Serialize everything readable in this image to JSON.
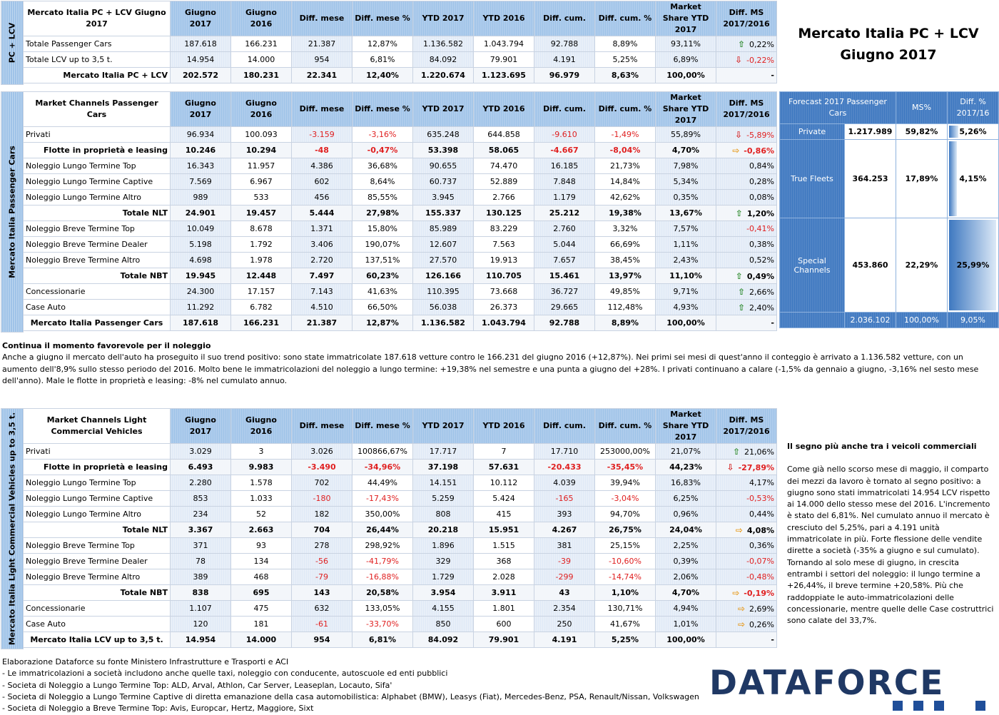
{
  "header": {
    "title_line1": "Mercato Italia PC + LCV",
    "title_line2": "Giugno 2017"
  },
  "columns": [
    "Giugno 2017",
    "Giugno 2016",
    "Diff. mese",
    "Diff. mese %",
    "YTD 2017",
    "YTD 2016",
    "Diff. cum.",
    "Diff. cum. %",
    "Market Share YTD 2017",
    "Diff. MS 2017/2016"
  ],
  "table1": {
    "side_label": "PC + LCV",
    "head_label": "Mercato Italia PC + LCV Giugno 2017",
    "rows": [
      {
        "label": "Totale Passenger Cars",
        "v": [
          "187.618",
          "166.231",
          "21.387",
          "12,87%",
          "1.136.582",
          "1.043.794",
          "92.788",
          "8,89%",
          "93,11%"
        ],
        "arrow": "up",
        "dms": "0,22%",
        "neg": []
      },
      {
        "label": "Totale LCV up to 3,5 t.",
        "v": [
          "14.954",
          "14.000",
          "954",
          "6,81%",
          "84.092",
          "79.901",
          "4.191",
          "5,25%",
          "6,89%"
        ],
        "arrow": "down",
        "dms": "-0,22%",
        "neg": [
          9
        ]
      },
      {
        "label": "Mercato Italia PC + LCV",
        "v": [
          "202.572",
          "180.231",
          "22.341",
          "12,40%",
          "1.220.674",
          "1.123.695",
          "96.979",
          "8,63%",
          "100,00%"
        ],
        "arrow": "",
        "dms": "-",
        "neg": [],
        "bold": true
      }
    ]
  },
  "table2": {
    "side_label": "Mercato Italia Passenger Cars",
    "head_label": "Market Channels Passenger Cars",
    "rows": [
      {
        "label": "Privati",
        "v": [
          "96.934",
          "100.093",
          "-3.159",
          "-3,16%",
          "635.248",
          "644.858",
          "-9.610",
          "-1,49%",
          "55,89%"
        ],
        "arrow": "down",
        "dms": "-5,89%",
        "neg": [
          2,
          3,
          6,
          7,
          9
        ]
      },
      {
        "label": "Flotte in proprietà e leasing",
        "v": [
          "10.246",
          "10.294",
          "-48",
          "-0,47%",
          "53.398",
          "58.065",
          "-4.667",
          "-8,04%",
          "4,70%"
        ],
        "arrow": "right",
        "dms": "-0,86%",
        "neg": [
          2,
          3,
          6,
          7,
          9
        ],
        "bold": true
      },
      {
        "label": "Noleggio Lungo Termine Top",
        "v": [
          "16.343",
          "11.957",
          "4.386",
          "36,68%",
          "90.655",
          "74.470",
          "16.185",
          "21,73%",
          "7,98%"
        ],
        "arrow": "",
        "dms": "0,84%",
        "neg": []
      },
      {
        "label": "Noleggio Lungo Termine Captive",
        "v": [
          "7.569",
          "6.967",
          "602",
          "8,64%",
          "60.737",
          "52.889",
          "7.848",
          "14,84%",
          "5,34%"
        ],
        "arrow": "",
        "dms": "0,28%",
        "neg": []
      },
      {
        "label": "Noleggio Lungo Termine Altro",
        "v": [
          "989",
          "533",
          "456",
          "85,55%",
          "3.945",
          "2.766",
          "1.179",
          "42,62%",
          "0,35%"
        ],
        "arrow": "",
        "dms": "0,08%",
        "neg": []
      },
      {
        "label": "Totale NLT",
        "v": [
          "24.901",
          "19.457",
          "5.444",
          "27,98%",
          "155.337",
          "130.125",
          "25.212",
          "19,38%",
          "13,67%"
        ],
        "arrow": "up",
        "dms": "1,20%",
        "neg": [],
        "bold": true
      },
      {
        "label": "Noleggio Breve Termine Top",
        "v": [
          "10.049",
          "8.678",
          "1.371",
          "15,80%",
          "85.989",
          "83.229",
          "2.760",
          "3,32%",
          "7,57%"
        ],
        "arrow": "",
        "dms": "-0,41%",
        "neg": [
          9
        ]
      },
      {
        "label": "Noleggio Breve Termine Dealer",
        "v": [
          "5.198",
          "1.792",
          "3.406",
          "190,07%",
          "12.607",
          "7.563",
          "5.044",
          "66,69%",
          "1,11%"
        ],
        "arrow": "",
        "dms": "0,38%",
        "neg": []
      },
      {
        "label": "Noleggio Breve Termine Altro",
        "v": [
          "4.698",
          "1.978",
          "2.720",
          "137,51%",
          "27.570",
          "19.913",
          "7.657",
          "38,45%",
          "2,43%"
        ],
        "arrow": "",
        "dms": "0,52%",
        "neg": []
      },
      {
        "label": "Totale NBT",
        "v": [
          "19.945",
          "12.448",
          "7.497",
          "60,23%",
          "126.166",
          "110.705",
          "15.461",
          "13,97%",
          "11,10%"
        ],
        "arrow": "up",
        "dms": "0,49%",
        "neg": [],
        "bold": true
      },
      {
        "label": "Concessionarie",
        "v": [
          "24.300",
          "17.157",
          "7.143",
          "41,63%",
          "110.395",
          "73.668",
          "36.727",
          "49,85%",
          "9,71%"
        ],
        "arrow": "up",
        "dms": "2,66%",
        "neg": []
      },
      {
        "label": "Case Auto",
        "v": [
          "11.292",
          "6.782",
          "4.510",
          "66,50%",
          "56.038",
          "26.373",
          "29.665",
          "112,48%",
          "4,93%"
        ],
        "arrow": "up",
        "dms": "2,40%",
        "neg": []
      },
      {
        "label": "Mercato Italia Passenger Cars",
        "v": [
          "187.618",
          "166.231",
          "21.387",
          "12,87%",
          "1.136.582",
          "1.043.794",
          "92.788",
          "8,89%",
          "100,00%"
        ],
        "arrow": "",
        "dms": "-",
        "neg": [],
        "bold": true,
        "total": true
      }
    ]
  },
  "forecast": {
    "head": [
      "Forecast 2017 Passenger Cars",
      "MS%",
      "Diff. % 2017/16"
    ],
    "rows": [
      {
        "label": "Private",
        "value": "1.217.989",
        "ms": "59,82%",
        "diff": "5,26%",
        "bar": 0.2
      },
      {
        "label": "True Fleets",
        "value": "364.253",
        "ms": "17,89%",
        "diff": "4,15%",
        "bar": 0.16
      },
      {
        "label": "Special Channels",
        "value": "453.860",
        "ms": "22,29%",
        "diff": "25,99%",
        "bar": 1.0
      }
    ],
    "total": {
      "value": "2.036.102",
      "ms": "100,00%",
      "diff": "9,05%"
    }
  },
  "text1": {
    "title": "Continua il momento favorevole per il noleggio",
    "body": "Anche a giugno il mercato dell'auto ha proseguito il suo trend positivo: sono state immatricolate 187.618 vetture contro le 166.231 del giugno 2016 (+12,87%). Nei primi sei mesi di quest'anno il conteggio è arrivato a 1.136.582 vetture, con un aumento dell'8,9% sullo stesso periodo del 2016. Molto bene le immatricolazioni del noleggio a lungo termine:  +19,38% nel semestre e una punta a giugno del +28%. I privati continuano a calare (-1,5% da gennaio a giugno, -3,16% nel sesto mese dell'anno). Male le flotte in proprietà e leasing: -8% nel cumulato annuo."
  },
  "table3": {
    "side_label": "Mercato Italia Light Commercial Vehicles up to 3,5 t.",
    "head_label": "Market Channels Light Commercial Vehicles",
    "rows": [
      {
        "label": "Privati",
        "v": [
          "3.029",
          "3",
          "3.026",
          "100866,67%",
          "17.717",
          "7",
          "17.710",
          "253000,00%",
          "21,07%"
        ],
        "arrow": "up",
        "dms": "21,06%",
        "neg": []
      },
      {
        "label": "Flotte in proprietà e leasing",
        "v": [
          "6.493",
          "9.983",
          "-3.490",
          "-34,96%",
          "37.198",
          "57.631",
          "-20.433",
          "-35,45%",
          "44,23%"
        ],
        "arrow": "down",
        "dms": "-27,89%",
        "neg": [
          2,
          3,
          6,
          7,
          9
        ],
        "bold": true
      },
      {
        "label": "Noleggio Lungo Termine Top",
        "v": [
          "2.280",
          "1.578",
          "702",
          "44,49%",
          "14.151",
          "10.112",
          "4.039",
          "39,94%",
          "16,83%"
        ],
        "arrow": "",
        "dms": "4,17%",
        "neg": []
      },
      {
        "label": "Noleggio Lungo Termine Captive",
        "v": [
          "853",
          "1.033",
          "-180",
          "-17,43%",
          "5.259",
          "5.424",
          "-165",
          "-3,04%",
          "6,25%"
        ],
        "arrow": "",
        "dms": "-0,53%",
        "neg": [
          2,
          3,
          6,
          7,
          9
        ]
      },
      {
        "label": "Noleggio Lungo Termine Altro",
        "v": [
          "234",
          "52",
          "182",
          "350,00%",
          "808",
          "415",
          "393",
          "94,70%",
          "0,96%"
        ],
        "arrow": "",
        "dms": "0,44%",
        "neg": []
      },
      {
        "label": "Totale NLT",
        "v": [
          "3.367",
          "2.663",
          "704",
          "26,44%",
          "20.218",
          "15.951",
          "4.267",
          "26,75%",
          "24,04%"
        ],
        "arrow": "right",
        "dms": "4,08%",
        "neg": [],
        "bold": true
      },
      {
        "label": "Noleggio Breve Termine Top",
        "v": [
          "371",
          "93",
          "278",
          "298,92%",
          "1.896",
          "1.515",
          "381",
          "25,15%",
          "2,25%"
        ],
        "arrow": "",
        "dms": "0,36%",
        "neg": []
      },
      {
        "label": "Noleggio Breve Termine Dealer",
        "v": [
          "78",
          "134",
          "-56",
          "-41,79%",
          "329",
          "368",
          "-39",
          "-10,60%",
          "0,39%"
        ],
        "arrow": "",
        "dms": "-0,07%",
        "neg": [
          2,
          3,
          6,
          7,
          9
        ]
      },
      {
        "label": "Noleggio Breve Termine Altro",
        "v": [
          "389",
          "468",
          "-79",
          "-16,88%",
          "1.729",
          "2.028",
          "-299",
          "-14,74%",
          "2,06%"
        ],
        "arrow": "",
        "dms": "-0,48%",
        "neg": [
          2,
          3,
          6,
          7,
          9
        ]
      },
      {
        "label": "Totale NBT",
        "v": [
          "838",
          "695",
          "143",
          "20,58%",
          "3.954",
          "3.911",
          "43",
          "1,10%",
          "4,70%"
        ],
        "arrow": "right",
        "dms": "-0,19%",
        "neg": [
          9
        ],
        "bold": true
      },
      {
        "label": "Concessionarie",
        "v": [
          "1.107",
          "475",
          "632",
          "133,05%",
          "4.155",
          "1.801",
          "2.354",
          "130,71%",
          "4,94%"
        ],
        "arrow": "right",
        "dms": "2,69%",
        "neg": []
      },
      {
        "label": "Case Auto",
        "v": [
          "120",
          "181",
          "-61",
          "-33,70%",
          "850",
          "600",
          "250",
          "41,67%",
          "1,01%"
        ],
        "arrow": "right",
        "dms": "0,26%",
        "neg": [
          2,
          3
        ]
      },
      {
        "label": "Mercato Italia LCV up to 3,5 t.",
        "v": [
          "14.954",
          "14.000",
          "954",
          "6,81%",
          "84.092",
          "79.901",
          "4.191",
          "5,25%",
          "100,00%"
        ],
        "arrow": "",
        "dms": "-",
        "neg": [],
        "bold": true,
        "total": true
      }
    ]
  },
  "text2": {
    "title": "Il segno più anche tra i veicoli commerciali",
    "body": "Come già nello scorso mese di maggio, il comparto dei mezzi da lavoro è tornato al segno positivo: a giugno sono stati immatricolati 14.954 LCV rispetto ai 14.000 dello stesso mese del 2016. L'incremento è stato del 6,81%. Nel cumulato annuo il mercato è cresciuto del 5,25%, pari a 4.191 unità immatricolate in più. Forte flessione delle vendite dirette a società (-35% a giugno e sul cumulato). Tornando al solo mese di giugno, in crescita entrambi i settori del noleggio: il lungo termine a +26,44%, il breve termine +20,58%. Più che raddoppiate le auto-immatricolazioni delle concessionarie, mentre quelle delle Case costruttrici sono calate del 33,7%."
  },
  "footer": {
    "lines": [
      "Elaborazione Dataforce su fonte Ministero Infrastrutture e Trasporti e ACI",
      "- Le immatricolazioni a società includono anche quelle taxi, noleggio con conducente, autoscuole ed enti pubblici",
      "- Societa di Noleggio a Lungo Termine Top: ALD, Arval, Athlon, Car Server, Leaseplan, Locauto, Sifa'",
      "- Societa di Noleggio a Lungo Termine Captive di diretta emanazione della casa automobilistica: Alphabet (BMW), Leasys (Fiat), Mercedes-Benz, PSA, Renault/Nissan, Volkswagen",
      "- Societa di Noleggio a Breve Termine Top: Avis, Europcar, Hertz, Maggiore, Sixt"
    ],
    "logo": "DATAFORCE"
  },
  "colors": {
    "header_bg": "#9fc3e8",
    "forecast_bg": "#3e78c0",
    "negative": "#e02020",
    "logo": "#1f3864"
  }
}
